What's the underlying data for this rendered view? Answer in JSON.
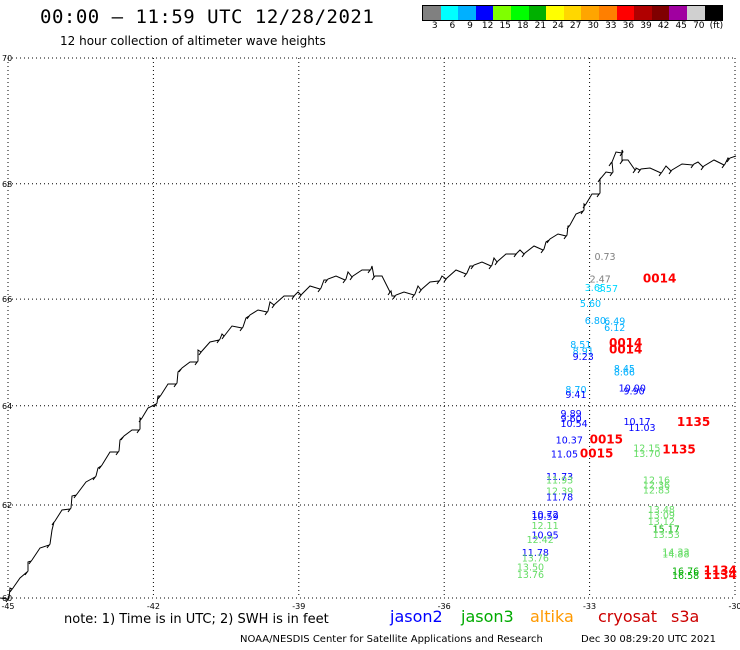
{
  "header": {
    "title": "00:00 – 11:59 UTC 12/28/2021",
    "subtitle": "12 hour collection of altimeter wave heights"
  },
  "colorbar": {
    "colors": [
      "#808080",
      "#00ffff",
      "#00b0ff",
      "#0000ff",
      "#7fff00",
      "#00ff00",
      "#00b000",
      "#ffff00",
      "#ffd700",
      "#ffa500",
      "#ff7f00",
      "#ff0000",
      "#b00000",
      "#800000",
      "#a000a0",
      "#d0d0d0",
      "#000000"
    ],
    "labels": [
      "3",
      "6",
      "9",
      "12",
      "15",
      "18",
      "21",
      "24",
      "27",
      "30",
      "33",
      "36",
      "39",
      "42",
      "45",
      "70",
      "(ft)"
    ]
  },
  "axes": {
    "lat_ticks": [
      "70",
      "68",
      "66",
      "64",
      "62",
      "60"
    ],
    "lon_ticks": [
      "-45",
      "-42",
      "-39",
      "-36",
      "-33",
      "-30"
    ]
  },
  "wave_labels": [
    {
      "text": "0.73",
      "lon": -32.9,
      "lat": 66.7,
      "color": "#808080"
    },
    {
      "text": "2.47",
      "lon": -33.0,
      "lat": 66.3,
      "color": "#808080"
    },
    {
      "text": "3.65",
      "lon": -33.1,
      "lat": 66.15,
      "color": "#00d8ff"
    },
    {
      "text": "3.57",
      "lon": -32.85,
      "lat": 66.13,
      "color": "#00d8ff"
    },
    {
      "text": "5.60",
      "lon": -33.2,
      "lat": 65.86,
      "color": "#00c0ff"
    },
    {
      "text": "6.80",
      "lon": -33.1,
      "lat": 65.55,
      "color": "#00b0ff"
    },
    {
      "text": "6.49",
      "lon": -32.7,
      "lat": 65.54,
      "color": "#00b0ff"
    },
    {
      "text": "6.12",
      "lon": -32.7,
      "lat": 65.42,
      "color": "#00b0ff"
    },
    {
      "text": "8.51",
      "lon": -33.4,
      "lat": 65.1,
      "color": "#00b0ff"
    },
    {
      "text": "8.91",
      "lon": -33.35,
      "lat": 64.98,
      "color": "#00b0ff"
    },
    {
      "text": "9.23",
      "lon": -33.35,
      "lat": 64.88,
      "color": "#0000ff"
    },
    {
      "text": "8.45",
      "lon": -32.5,
      "lat": 64.65,
      "color": "#00b0ff"
    },
    {
      "text": "8.66",
      "lon": -32.5,
      "lat": 64.58,
      "color": "#00b0ff"
    },
    {
      "text": "8.70",
      "lon": -33.5,
      "lat": 64.25,
      "color": "#00b0ff"
    },
    {
      "text": "9.41",
      "lon": -33.5,
      "lat": 64.15,
      "color": "#0000ff"
    },
    {
      "text": "10.00",
      "lon": -32.4,
      "lat": 64.28,
      "color": "#0000ff"
    },
    {
      "text": "9.90",
      "lon": -32.3,
      "lat": 64.22,
      "color": "#0000ff"
    },
    {
      "text": "9.89",
      "lon": -33.6,
      "lat": 63.78,
      "color": "#0000ff"
    },
    {
      "text": "9.60",
      "lon": -33.6,
      "lat": 63.68,
      "color": "#0000ff"
    },
    {
      "text": "10.54",
      "lon": -33.6,
      "lat": 63.58,
      "color": "#0000ff"
    },
    {
      "text": "10.17",
      "lon": -32.3,
      "lat": 63.62,
      "color": "#0000ff"
    },
    {
      "text": "11.03",
      "lon": -32.2,
      "lat": 63.5,
      "color": "#0000ff"
    },
    {
      "text": "10.37",
      "lon": -33.7,
      "lat": 63.26,
      "color": "#0000ff"
    },
    {
      "text": "11.05",
      "lon": -33.8,
      "lat": 62.98,
      "color": "#0000ff"
    },
    {
      "text": "12.15",
      "lon": -32.1,
      "lat": 63.1,
      "color": "#66dd66"
    },
    {
      "text": "13.70",
      "lon": -32.1,
      "lat": 62.99,
      "color": "#66dd66"
    },
    {
      "text": "11.73",
      "lon": -33.9,
      "lat": 62.52,
      "color": "#0000ff"
    },
    {
      "text": "11.93",
      "lon": -33.9,
      "lat": 62.45,
      "color": "#66dd66"
    },
    {
      "text": "12.39",
      "lon": -33.9,
      "lat": 62.22,
      "color": "#66dd66"
    },
    {
      "text": "11.78",
      "lon": -33.9,
      "lat": 62.09,
      "color": "#0000ff"
    },
    {
      "text": "12.16",
      "lon": -31.9,
      "lat": 62.45,
      "color": "#66dd66"
    },
    {
      "text": "12.36",
      "lon": -31.9,
      "lat": 62.34,
      "color": "#66dd66"
    },
    {
      "text": "12.83",
      "lon": -31.9,
      "lat": 62.24,
      "color": "#66dd66"
    },
    {
      "text": "10.72",
      "lon": -34.2,
      "lat": 61.73,
      "color": "#0000ff"
    },
    {
      "text": "10.59",
      "lon": -34.2,
      "lat": 61.69,
      "color": "#0000ff"
    },
    {
      "text": "12.11",
      "lon": -34.2,
      "lat": 61.5,
      "color": "#66dd66"
    },
    {
      "text": "10.95",
      "lon": -34.2,
      "lat": 61.3,
      "color": "#0000ff"
    },
    {
      "text": "12.42",
      "lon": -34.3,
      "lat": 61.2,
      "color": "#66dd66"
    },
    {
      "text": "13.48",
      "lon": -31.8,
      "lat": 61.83,
      "color": "#66dd66"
    },
    {
      "text": "13.09",
      "lon": -31.8,
      "lat": 61.72,
      "color": "#66dd66"
    },
    {
      "text": "13.12",
      "lon": -31.8,
      "lat": 61.58,
      "color": "#66dd66"
    },
    {
      "text": "15.17",
      "lon": -31.7,
      "lat": 61.42,
      "color": "#00b000"
    },
    {
      "text": "13.53",
      "lon": -31.7,
      "lat": 61.31,
      "color": "#66dd66"
    },
    {
      "text": "11.78",
      "lon": -34.4,
      "lat": 60.92,
      "color": "#0000ff"
    },
    {
      "text": "13.76",
      "lon": -34.4,
      "lat": 60.8,
      "color": "#66dd66"
    },
    {
      "text": "14.33",
      "lon": -31.5,
      "lat": 60.93,
      "color": "#66dd66"
    },
    {
      "text": "14.88",
      "lon": -31.5,
      "lat": 60.89,
      "color": "#66dd66"
    },
    {
      "text": "13.50",
      "lon": -34.5,
      "lat": 60.61,
      "color": "#66dd66"
    },
    {
      "text": "13.76",
      "lon": -34.5,
      "lat": 60.44,
      "color": "#66dd66"
    },
    {
      "text": "16.76",
      "lon": -31.3,
      "lat": 60.52,
      "color": "#00b000"
    },
    {
      "text": "16.58",
      "lon": -31.3,
      "lat": 60.42,
      "color": "#00b000"
    }
  ],
  "time_labels": [
    {
      "text": "0014",
      "lon": -31.9,
      "lat": 66.3,
      "color": "#ff0000"
    },
    {
      "text": "0014",
      "lon": -32.6,
      "lat": 65.12,
      "color": "#ff0000"
    },
    {
      "text": "0014",
      "lon": -32.6,
      "lat": 65.0,
      "color": "#ff0000"
    },
    {
      "text": "1135",
      "lon": -31.2,
      "lat": 63.6,
      "color": "#ff0000"
    },
    {
      "text": "0015",
      "lon": -33.0,
      "lat": 63.26,
      "color": "#ff0000"
    },
    {
      "text": "0015",
      "lon": -33.2,
      "lat": 62.98,
      "color": "#ff0000"
    },
    {
      "text": "1135",
      "lon": -31.5,
      "lat": 63.06,
      "color": "#ff0000"
    },
    {
      "text": "1134",
      "lon": -30.65,
      "lat": 60.52,
      "color": "#ff0000"
    },
    {
      "text": "1134",
      "lon": -30.65,
      "lat": 60.42,
      "color": "#ff0000"
    }
  ],
  "footer": {
    "note": "note: 1) Time is in UTC; 2) SWH is in feet",
    "legend": [
      {
        "label": "jason2",
        "color": "#0000ff"
      },
      {
        "label": "jason3",
        "color": "#00aa00"
      },
      {
        "label": "altika",
        "color": "#ff9900"
      },
      {
        "label": "cryosat",
        "color": "#cc0000"
      },
      {
        "label": "s3a",
        "color": "#cc0000"
      }
    ],
    "credit": "NOAA/NESDIS Center for Satellite Applications and Research",
    "generated": "Dec 30 08:29:20 UTC 2021"
  }
}
